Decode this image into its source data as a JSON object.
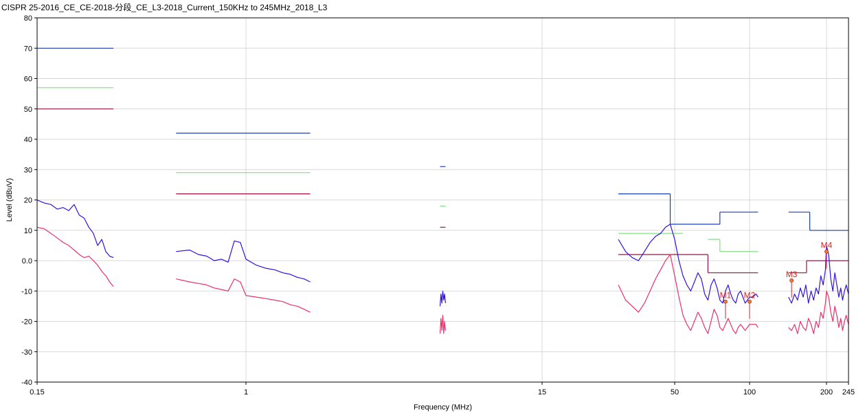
{
  "title": "CISPR 25-2016_CE_CE-2018-分段_CE_L3-2018_Current_150KHz to 245MHz_2018_L3",
  "chart_data": {
    "type": "line",
    "title": "CISPR 25-2016_CE_CE-2018-分段_CE_L3-2018_Current_150KHz to 245MHz_2018_L3",
    "xlabel": "Frequency (MHz)",
    "ylabel": "Level (dBuV)",
    "xlim": [
      0.15,
      245
    ],
    "ylim": [
      -40,
      80
    ],
    "grid": true,
    "x_ticks": [
      {
        "label": "0.15",
        "value": 0.15
      },
      {
        "label": "1",
        "value": 1
      },
      {
        "label": "15",
        "value": 15
      },
      {
        "label": "50",
        "value": 50
      },
      {
        "label": "100",
        "value": 100
      },
      {
        "label": "200",
        "value": 200
      },
      {
        "label": "245",
        "value": 245
      }
    ],
    "y_ticks": [
      {
        "label": "80",
        "value": 80
      },
      {
        "label": "70",
        "value": 70
      },
      {
        "label": "60",
        "value": 60
      },
      {
        "label": "50",
        "value": 50
      },
      {
        "label": "40",
        "value": 40
      },
      {
        "label": "30",
        "value": 30
      },
      {
        "label": "20",
        "value": 20
      },
      {
        "label": "10",
        "value": 10
      },
      {
        "label": "0.0",
        "value": 0
      },
      {
        "label": "-10",
        "value": -10
      },
      {
        "label": "-20",
        "value": -20
      },
      {
        "label": "-30",
        "value": -30
      },
      {
        "label": "-40",
        "value": -40
      }
    ],
    "limit_lines": [
      {
        "color": "#1c3fb0",
        "segments": [
          {
            "x": [
              0.15,
              0.3
            ],
            "y": [
              70,
              70
            ]
          },
          {
            "x": [
              0.53,
              1.8
            ],
            "y": [
              42,
              42
            ]
          },
          {
            "x": [
              5.9,
              6.2
            ],
            "y": [
              31,
              31
            ]
          },
          {
            "x": [
              30,
              48
            ],
            "y": [
              22,
              22
            ]
          },
          {
            "x": [
              48,
              48
            ],
            "y": [
              22,
              12
            ]
          },
          {
            "x": [
              48,
              76
            ],
            "y": [
              12,
              12
            ]
          },
          {
            "x": [
              76,
              76
            ],
            "y": [
              12,
              16
            ]
          },
          {
            "x": [
              76,
              108
            ],
            "y": [
              16,
              16
            ]
          },
          {
            "x": [
              142,
              172
            ],
            "y": [
              16,
              16
            ]
          },
          {
            "x": [
              172,
              172
            ],
            "y": [
              16,
              10
            ]
          },
          {
            "x": [
              172,
              245
            ],
            "y": [
              10,
              10
            ]
          }
        ]
      },
      {
        "color": "#7ee07e",
        "segments": [
          {
            "x": [
              0.15,
              0.3
            ],
            "y": [
              57,
              57
            ]
          },
          {
            "x": [
              0.53,
              1.8
            ],
            "y": [
              29,
              29
            ]
          },
          {
            "x": [
              5.9,
              6.2
            ],
            "y": [
              18,
              18
            ]
          },
          {
            "x": [
              30,
              54
            ],
            "y": [
              9,
              9
            ]
          },
          {
            "x": [
              68,
              76
            ],
            "y": [
              7,
              7
            ]
          },
          {
            "x": [
              76,
              76
            ],
            "y": [
              7,
              3
            ]
          },
          {
            "x": [
              76,
              108
            ],
            "y": [
              3,
              3
            ]
          }
        ]
      },
      {
        "color": "#a0103a",
        "segments": [
          {
            "x": [
              0.15,
              0.3
            ],
            "y": [
              50,
              50
            ]
          },
          {
            "x": [
              0.53,
              1.8
            ],
            "y": [
              22,
              22
            ]
          },
          {
            "x": [
              5.9,
              6.2
            ],
            "y": [
              11,
              11
            ]
          },
          {
            "x": [
              30,
              68
            ],
            "y": [
              2,
              2
            ]
          },
          {
            "x": [
              68,
              68
            ],
            "y": [
              2,
              -4
            ]
          },
          {
            "x": [
              68,
              108
            ],
            "y": [
              -4,
              -4
            ]
          },
          {
            "x": [
              142,
              167
            ],
            "y": [
              -4,
              -4
            ]
          },
          {
            "x": [
              167,
              167
            ],
            "y": [
              -4,
              0
            ]
          },
          {
            "x": [
              167,
              245
            ],
            "y": [
              0,
              0
            ]
          }
        ]
      }
    ],
    "series": [
      {
        "color": "#3010e0",
        "segments": [
          {
            "x": [
              0.15,
              0.16,
              0.17,
              0.18,
              0.19,
              0.2,
              0.21,
              0.22,
              0.23,
              0.24,
              0.25,
              0.26,
              0.27,
              0.28,
              0.29,
              0.3
            ],
            "y": [
              20,
              19,
              18.5,
              17,
              17.5,
              16.5,
              18.5,
              15,
              14,
              11,
              9,
              5,
              7,
              3,
              1.5,
              1
            ]
          },
          {
            "x": [
              0.53,
              0.6,
              0.65,
              0.7,
              0.75,
              0.8,
              0.85,
              0.9,
              0.95,
              1.0,
              1.1,
              1.2,
              1.3,
              1.4,
              1.5,
              1.6,
              1.7,
              1.8
            ],
            "y": [
              3,
              3.5,
              2,
              1.5,
              0,
              0.5,
              -0.5,
              6.5,
              6,
              0.5,
              -1.5,
              -2.5,
              -3,
              -4,
              -4.5,
              -5.5,
              -6,
              -7
            ]
          },
          {
            "x": [
              5.9,
              5.95,
              6.0,
              6.05,
              6.1,
              6.15,
              6.2
            ],
            "y": [
              -15,
              -11,
              -14,
              -10,
              -13,
              -11,
              -14
            ]
          },
          {
            "x": [
              30,
              32,
              34,
              36,
              38,
              40,
              42,
              44,
              46,
              48,
              50,
              52,
              54,
              56,
              58,
              60,
              62,
              64,
              66,
              68,
              70,
              72,
              74,
              76,
              78,
              80,
              82,
              84,
              86,
              88,
              90,
              92,
              94,
              96,
              98,
              100,
              103,
              106,
              108
            ],
            "y": [
              7,
              3,
              1,
              0,
              3,
              6,
              8,
              9,
              11,
              12,
              7,
              0,
              -5,
              -8,
              -10,
              -7,
              -4,
              -6,
              -11,
              -13,
              -8,
              -6,
              -9,
              -13,
              -14,
              -10,
              -8,
              -11,
              -13,
              -14,
              -11,
              -10,
              -12,
              -14,
              -13,
              -12,
              -12,
              -11,
              -12
            ]
          },
          {
            "x": [
              142,
              146,
              150,
              154,
              158,
              162,
              166,
              170,
              174,
              178,
              182,
              186,
              190,
              194,
              198,
              200,
              204,
              208,
              212,
              216,
              220,
              224,
              228,
              232,
              236,
              240,
              245
            ],
            "y": [
              -12,
              -14,
              -11,
              -13,
              -9,
              -12,
              -8,
              -14,
              -10,
              -13,
              -9,
              -11,
              -5,
              -8,
              -3,
              5,
              2,
              -6,
              -10,
              -4,
              -8,
              -12,
              -9,
              -13,
              -10,
              -8,
              -11
            ]
          }
        ]
      },
      {
        "color": "#e8306a",
        "segments": [
          {
            "x": [
              0.15,
              0.16,
              0.17,
              0.18,
              0.19,
              0.2,
              0.21,
              0.22,
              0.23,
              0.24,
              0.25,
              0.26,
              0.27,
              0.28,
              0.29,
              0.3
            ],
            "y": [
              11,
              10.5,
              9,
              7.5,
              6,
              5,
              3.5,
              2,
              1,
              1.5,
              0,
              -1.5,
              -3.5,
              -5,
              -7,
              -8.5
            ]
          },
          {
            "x": [
              0.53,
              0.6,
              0.65,
              0.7,
              0.75,
              0.8,
              0.85,
              0.9,
              0.95,
              1.0,
              1.1,
              1.2,
              1.3,
              1.4,
              1.5,
              1.6,
              1.7,
              1.8
            ],
            "y": [
              -6,
              -7,
              -7.5,
              -8,
              -9,
              -9.5,
              -10,
              -6,
              -7,
              -11.5,
              -12,
              -12.5,
              -13,
              -13.5,
              -14.5,
              -15,
              -16,
              -17
            ]
          },
          {
            "x": [
              5.9,
              5.95,
              6.0,
              6.05,
              6.1,
              6.15,
              6.2
            ],
            "y": [
              -24,
              -19,
              -23,
              -18,
              -24,
              -20,
              -23
            ]
          },
          {
            "x": [
              30,
              32,
              34,
              36,
              38,
              40,
              42,
              44,
              46,
              48,
              50,
              52,
              54,
              56,
              58,
              60,
              62,
              64,
              66,
              68,
              70,
              72,
              74,
              76,
              78,
              80,
              82,
              84,
              86,
              88,
              90,
              92,
              94,
              96,
              98,
              100,
              103,
              106,
              108
            ],
            "y": [
              -8,
              -13,
              -15,
              -17,
              -14,
              -10,
              -6,
              -3,
              0,
              2,
              -5,
              -12,
              -18,
              -21,
              -23,
              -20,
              -17,
              -19,
              -22,
              -24,
              -20,
              -16,
              -18,
              -22,
              -23,
              -21,
              -19,
              -21,
              -23,
              -24,
              -22,
              -21,
              -22,
              -23,
              -22,
              -21,
              -21,
              -21,
              -22
            ]
          },
          {
            "x": [
              142,
              146,
              150,
              154,
              158,
              162,
              166,
              170,
              174,
              178,
              182,
              186,
              190,
              194,
              198,
              200,
              204,
              208,
              212,
              216,
              220,
              224,
              228,
              232,
              236,
              240,
              245
            ],
            "y": [
              -22,
              -23,
              -21,
              -24,
              -20,
              -22,
              -23,
              -19,
              -21,
              -24,
              -20,
              -22,
              -17,
              -19,
              -14,
              -10,
              -12,
              -17,
              -20,
              -15,
              -18,
              -22,
              -19,
              -23,
              -20,
              -18,
              -21
            ]
          }
        ]
      }
    ],
    "markers": [
      {
        "label": "M1",
        "x": 80,
        "y": -13.5
      },
      {
        "label": "M2",
        "x": 100,
        "y": -13.5
      },
      {
        "label": "M3",
        "x": 146,
        "y": -6.5
      },
      {
        "label": "M4",
        "x": 200,
        "y": 3
      }
    ]
  }
}
